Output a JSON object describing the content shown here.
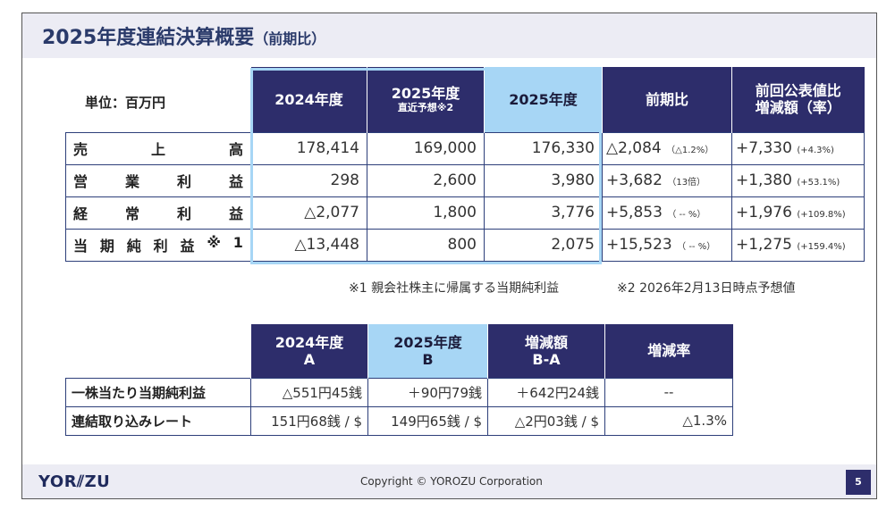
{
  "title": {
    "main": "2025年度連結決算概要",
    "sub": "（前期比）"
  },
  "unit_label": "単位：百万円",
  "main_table": {
    "headers": [
      {
        "line1": "2024年度",
        "line2": ""
      },
      {
        "line1": "2025年度",
        "line2": "直近予想※2"
      },
      {
        "line1": "2025年度",
        "line2": ""
      },
      {
        "line1": "前期比",
        "line2": ""
      },
      {
        "line1": "前回公表値比",
        "line2": "増減額（率）"
      }
    ],
    "rows": [
      {
        "label": [
          "売",
          "上",
          "高"
        ],
        "fy2024": "178,414",
        "forecast": "169,000",
        "fy2025": "176,330",
        "yoy": "△2,084",
        "yoy_rate": "（△1.2%）",
        "vs_prev": "+7,330",
        "vs_prev_rate": "(+4.3%)"
      },
      {
        "label": [
          "営",
          "業",
          "利",
          "益"
        ],
        "fy2024": "298",
        "forecast": "2,600",
        "fy2025": "3,980",
        "yoy": "+3,682",
        "yoy_rate": "（13倍）",
        "vs_prev": "+1,380",
        "vs_prev_rate": "(+53.1%)"
      },
      {
        "label": [
          "経",
          "常",
          "利",
          "益"
        ],
        "fy2024": "△2,077",
        "forecast": "1,800",
        "fy2025": "3,776",
        "yoy": "+5,853",
        "yoy_rate": "（ -- %）",
        "vs_prev": "+1,976",
        "vs_prev_rate": "(+109.8%)"
      },
      {
        "label": [
          "当",
          "期",
          "純",
          "利",
          "益",
          "※",
          "1"
        ],
        "fy2024": "△13,448",
        "forecast": "800",
        "fy2025": "2,075",
        "yoy": "+15,523",
        "yoy_rate": "（ -- %）",
        "vs_prev": "+1,275",
        "vs_prev_rate": "(+159.4%)"
      }
    ]
  },
  "notes": {
    "note1": "※1 親会社株主に帰属する当期純利益",
    "note2": "※2 2026年2月13日時点予想値"
  },
  "sub_table": {
    "headers": [
      {
        "line1": "2024年度",
        "line2": "A"
      },
      {
        "line1": "2025年度",
        "line2": "B"
      },
      {
        "line1": "増減額",
        "line2": "B-A"
      },
      {
        "line1": "増減率",
        "line2": ""
      }
    ],
    "rows": [
      {
        "label": "一株当たり当期純利益",
        "a": "△551円45銭",
        "b": "＋90円79銭",
        "diff": "＋642円24銭",
        "rate": "--"
      },
      {
        "label": "連結取り込みレート",
        "a": "151円68銭 / $",
        "b": "149円65銭 / $",
        "diff": "△2円03銭 / $",
        "rate": "△1.3%"
      }
    ]
  },
  "footer": {
    "logo": "YOR⫽ZU",
    "copyright": "Copyright © YOROZU Corporation",
    "page": "5"
  },
  "colors": {
    "header_dark": "#2d2d6b",
    "header_light": "#a7d6f5",
    "band": "#ececf4"
  }
}
